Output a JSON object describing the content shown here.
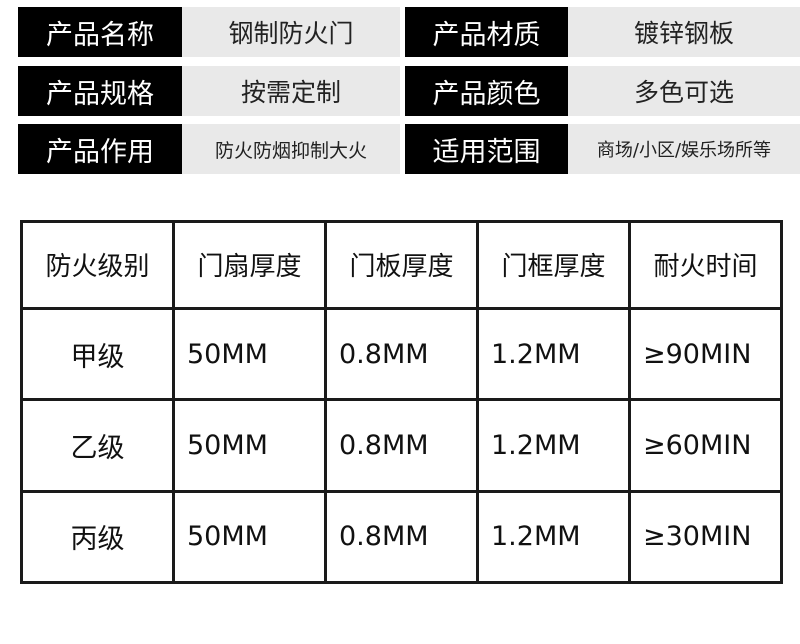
{
  "specs": [
    {
      "label": "产品名称",
      "value": "钢制防火门"
    },
    {
      "label": "产品材质",
      "value": "镀锌钢板"
    },
    {
      "label": "产品规格",
      "value": "按需定制"
    },
    {
      "label": "产品颜色",
      "value": "多色可选"
    },
    {
      "label": "产品作用",
      "value": "防火防烟抑制大火"
    },
    {
      "label": "适用范围",
      "value": "商场/小区/娱乐场所等"
    }
  ],
  "table": {
    "headers": [
      "防火级别",
      "门扇厚度",
      "门板厚度",
      "门框厚度",
      "耐火时间"
    ],
    "rows": [
      [
        "甲级",
        "50MM",
        "0.8MM",
        "1.2MM",
        "≥90MIN"
      ],
      [
        "乙级",
        "50MM",
        "0.8MM",
        "1.2MM",
        "≥60MIN"
      ],
      [
        "丙级",
        "50MM",
        "0.8MM",
        "1.2MM",
        "≥30MIN"
      ]
    ]
  }
}
